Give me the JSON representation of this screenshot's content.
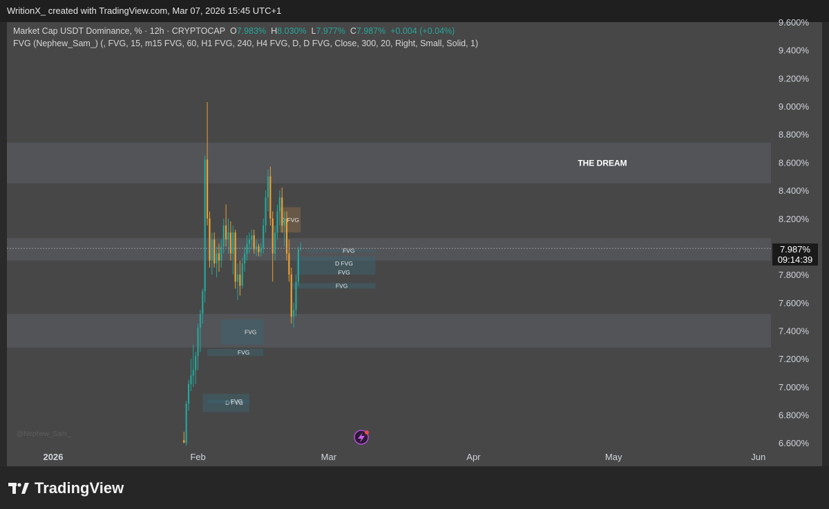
{
  "header": {
    "text": "WritionX_ created with TradingView.com, Mar 07, 2026 15:45 UTC+1"
  },
  "legend": {
    "symbol": "Market Cap USDT Dominance, % · 12h · CRYPTOCAP",
    "o_label": "O",
    "o_val": "7.983%",
    "h_label": "H",
    "h_val": "8.030%",
    "l_label": "L",
    "l_val": "7.977%",
    "c_label": "C",
    "c_val": "7.987%",
    "change": "+0.004 (+0.04%)",
    "indicator": "FVG (Nephew_Sam_) (, FVG, 15, m15 FVG, 60, H1 FVG, 240, H4 FVG, D, D FVG, Close, 300, 20, Right, Small, Solid, 1)"
  },
  "price_tag": {
    "price": "7.987%",
    "countdown": "09:14:39"
  },
  "watermark": "@Nephew_Sam_",
  "footer": {
    "brand": "TradingView"
  },
  "colors": {
    "up": "#26a69a",
    "down": "#f0a030",
    "background": "#474747"
  },
  "chart_data": {
    "type": "candlestick",
    "y_tick_labels": [
      "9.600%",
      "9.400%",
      "9.200%",
      "9.000%",
      "8.800%",
      "8.600%",
      "8.400%",
      "8.200%",
      "8.000%",
      "7.800%",
      "7.600%",
      "7.400%",
      "7.200%",
      "7.000%",
      "6.800%",
      "6.600%"
    ],
    "y_ticks": [
      9.6,
      9.4,
      9.2,
      9.0,
      8.8,
      8.6,
      8.4,
      8.2,
      8.0,
      7.8,
      7.6,
      7.4,
      7.2,
      7.0,
      6.8,
      6.6
    ],
    "x_tick_labels": [
      "2026",
      "Feb",
      "Mar",
      "Apr",
      "May",
      "Jun"
    ],
    "x_ticks": [
      0,
      31,
      59,
      90,
      120,
      151
    ],
    "last_price": 7.987,
    "zones": [
      {
        "label": "THE DREAM",
        "from": 8.45,
        "to": 8.74
      },
      {
        "label": "",
        "from": 7.9,
        "to": 8.06
      },
      {
        "label": "",
        "from": 7.28,
        "to": 7.52
      }
    ],
    "fvg_boxes": [
      {
        "label": "D FVG",
        "x0": 48.5,
        "x1": 53,
        "y0": 8.1,
        "y1": 8.28,
        "kind": "down"
      },
      {
        "label": "FVG",
        "x0": 54,
        "x1": 69,
        "y0": 7.96,
        "y1": 7.98,
        "kind": "up"
      },
      {
        "label": "D FVG",
        "x0": 52,
        "x1": 69,
        "y0": 7.83,
        "y1": 7.93,
        "kind": "up"
      },
      {
        "label": "FVG",
        "x0": 52,
        "x1": 69,
        "y0": 7.8,
        "y1": 7.83,
        "kind": "up"
      },
      {
        "label": "FVG",
        "x0": 51,
        "x1": 69,
        "y0": 7.7,
        "y1": 7.74,
        "kind": "up"
      },
      {
        "label": "FVG",
        "x0": 36,
        "x1": 45,
        "y0": 7.3,
        "y1": 7.48,
        "kind": "up"
      },
      {
        "label": "FVG",
        "x0": 33,
        "x1": 45,
        "y0": 7.22,
        "y1": 7.27,
        "kind": "up"
      },
      {
        "label": "D FVG",
        "x0": 32,
        "x1": 42,
        "y0": 6.82,
        "y1": 6.95,
        "kind": "up"
      },
      {
        "label": "FVG",
        "x0": 33,
        "x1": 42,
        "y0": 6.88,
        "y1": 6.91,
        "kind": "up"
      }
    ],
    "candles": [
      {
        "o": 6.62,
        "h": 6.68,
        "l": 6.6,
        "c": 6.6
      },
      {
        "o": 6.6,
        "h": 6.9,
        "l": 6.58,
        "c": 6.88
      },
      {
        "o": 6.88,
        "h": 7.05,
        "l": 6.83,
        "c": 7.02
      },
      {
        "o": 7.02,
        "h": 7.2,
        "l": 6.97,
        "c": 7.08
      },
      {
        "o": 7.08,
        "h": 7.3,
        "l": 7.0,
        "c": 7.12
      },
      {
        "o": 7.12,
        "h": 7.25,
        "l": 7.02,
        "c": 7.22
      },
      {
        "o": 7.22,
        "h": 7.45,
        "l": 7.12,
        "c": 7.42
      },
      {
        "o": 7.42,
        "h": 7.55,
        "l": 7.25,
        "c": 7.52
      },
      {
        "o": 7.52,
        "h": 7.7,
        "l": 7.45,
        "c": 7.68
      },
      {
        "o": 7.68,
        "h": 8.65,
        "l": 7.6,
        "c": 8.62
      },
      {
        "o": 8.62,
        "h": 9.03,
        "l": 8.15,
        "c": 8.2
      },
      {
        "o": 8.2,
        "h": 8.25,
        "l": 7.85,
        "c": 7.9
      },
      {
        "o": 7.9,
        "h": 8.1,
        "l": 7.8,
        "c": 8.05
      },
      {
        "o": 8.05,
        "h": 8.1,
        "l": 7.85,
        "c": 7.88
      },
      {
        "o": 7.88,
        "h": 8.0,
        "l": 7.78,
        "c": 7.95
      },
      {
        "o": 7.95,
        "h": 8.02,
        "l": 7.82,
        "c": 7.9
      },
      {
        "o": 7.9,
        "h": 8.05,
        "l": 7.85,
        "c": 8.0
      },
      {
        "o": 8.0,
        "h": 8.2,
        "l": 7.95,
        "c": 8.15
      },
      {
        "o": 8.15,
        "h": 8.3,
        "l": 8.0,
        "c": 8.05
      },
      {
        "o": 8.05,
        "h": 8.2,
        "l": 7.95,
        "c": 8.1
      },
      {
        "o": 8.1,
        "h": 8.18,
        "l": 7.9,
        "c": 7.95
      },
      {
        "o": 7.95,
        "h": 8.15,
        "l": 7.8,
        "c": 8.1
      },
      {
        "o": 8.1,
        "h": 8.12,
        "l": 7.7,
        "c": 7.75
      },
      {
        "o": 7.75,
        "h": 7.88,
        "l": 7.62,
        "c": 7.8
      },
      {
        "o": 7.8,
        "h": 7.9,
        "l": 7.65,
        "c": 7.72
      },
      {
        "o": 7.72,
        "h": 7.92,
        "l": 7.7,
        "c": 7.88
      },
      {
        "o": 7.88,
        "h": 8.0,
        "l": 7.82,
        "c": 7.95
      },
      {
        "o": 7.95,
        "h": 8.08,
        "l": 7.9,
        "c": 8.02
      },
      {
        "o": 8.02,
        "h": 8.1,
        "l": 7.95,
        "c": 8.05
      },
      {
        "o": 8.05,
        "h": 8.12,
        "l": 7.98,
        "c": 8.08
      },
      {
        "o": 8.08,
        "h": 8.12,
        "l": 7.95,
        "c": 7.98
      },
      {
        "o": 7.98,
        "h": 8.05,
        "l": 7.93,
        "c": 8.0
      },
      {
        "o": 8.0,
        "h": 8.02,
        "l": 7.93,
        "c": 7.96
      },
      {
        "o": 7.96,
        "h": 8.02,
        "l": 7.93,
        "c": 7.99
      },
      {
        "o": 7.99,
        "h": 8.2,
        "l": 7.95,
        "c": 8.15
      },
      {
        "o": 8.15,
        "h": 8.4,
        "l": 8.1,
        "c": 8.35
      },
      {
        "o": 8.35,
        "h": 8.55,
        "l": 8.25,
        "c": 8.5
      },
      {
        "o": 8.5,
        "h": 8.57,
        "l": 8.15,
        "c": 8.2
      },
      {
        "o": 8.2,
        "h": 8.25,
        "l": 7.75,
        "c": 7.95
      },
      {
        "o": 7.95,
        "h": 8.15,
        "l": 7.9,
        "c": 8.1
      },
      {
        "o": 8.1,
        "h": 8.3,
        "l": 8.05,
        "c": 8.25
      },
      {
        "o": 8.25,
        "h": 8.4,
        "l": 8.15,
        "c": 8.35
      },
      {
        "o": 8.35,
        "h": 8.42,
        "l": 8.1,
        "c": 8.15
      },
      {
        "o": 8.15,
        "h": 8.25,
        "l": 8.0,
        "c": 8.2
      },
      {
        "o": 8.2,
        "h": 8.25,
        "l": 7.9,
        "c": 7.95
      },
      {
        "o": 7.95,
        "h": 8.05,
        "l": 7.75,
        "c": 7.8
      },
      {
        "o": 7.8,
        "h": 7.85,
        "l": 7.45,
        "c": 7.5
      },
      {
        "o": 7.5,
        "h": 7.6,
        "l": 7.42,
        "c": 7.55
      },
      {
        "o": 7.55,
        "h": 7.8,
        "l": 7.5,
        "c": 7.75
      },
      {
        "o": 7.75,
        "h": 8.0,
        "l": 7.72,
        "c": 7.98
      },
      {
        "o": 7.98,
        "h": 8.03,
        "l": 7.97,
        "c": 7.99
      }
    ]
  }
}
